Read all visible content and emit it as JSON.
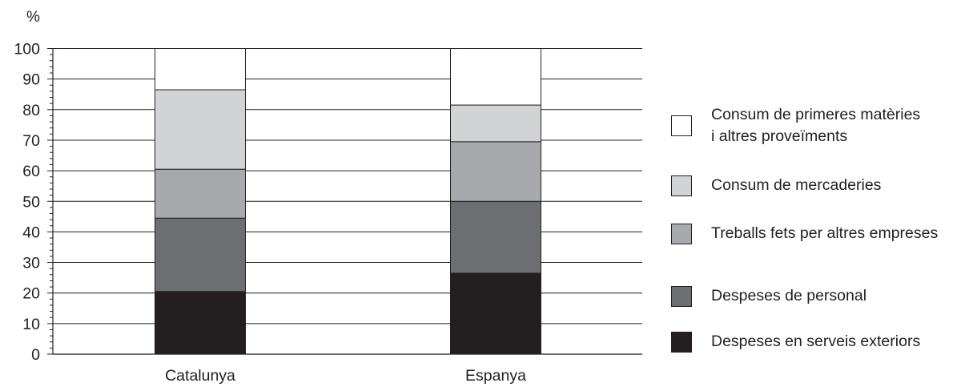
{
  "chart_data": {
    "type": "bar",
    "stacked": true,
    "y_unit_label": "%",
    "ylim": [
      0,
      100
    ],
    "y_ticks": [
      0,
      10,
      20,
      30,
      40,
      50,
      60,
      70,
      80,
      90,
      100
    ],
    "grid": true,
    "legend_position": "right",
    "categories": [
      "Catalunya",
      "Espanya"
    ],
    "series": [
      {
        "name": "Despeses en serveis exteriors",
        "color": "#231f20",
        "values": [
          20.5,
          26.5
        ]
      },
      {
        "name": "Despeses de personal",
        "color": "#6d6e71",
        "values": [
          24,
          23.5
        ]
      },
      {
        "name": "Treballs fets per altres empreses",
        "color": "#a7a9ac",
        "values": [
          16,
          19.5
        ]
      },
      {
        "name": "Consum de mercaderies",
        "color": "#d1d3d4",
        "values": [
          26,
          12
        ]
      },
      {
        "name": "Consum de primeres matèries\ni altres proveïments",
        "color": "#ffffff",
        "values": [
          13.5,
          18.5
        ]
      }
    ]
  }
}
